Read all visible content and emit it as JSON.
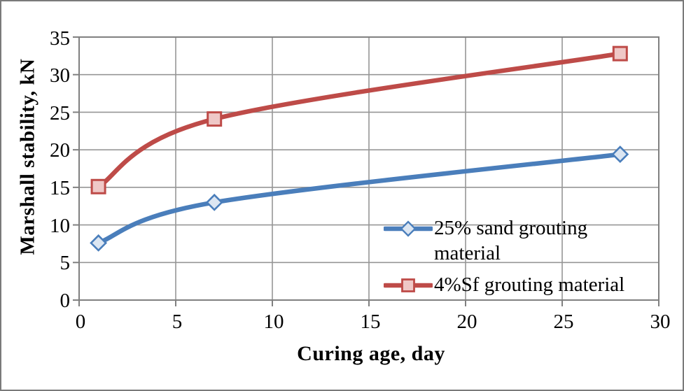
{
  "chart_data": {
    "type": "line",
    "title": "",
    "xlabel": "Curing age, day",
    "ylabel": "Marshall stability, kN",
    "xlim": [
      0,
      30
    ],
    "ylim": [
      0,
      35
    ],
    "xticks": [
      0,
      5,
      10,
      15,
      20,
      25,
      30
    ],
    "yticks": [
      0,
      5,
      10,
      15,
      20,
      25,
      30,
      35
    ],
    "grid": true,
    "line_style": "smooth",
    "legend_position": "inside bottom-right",
    "series": [
      {
        "name": "25% sand grouting material",
        "marker": "diamond",
        "color": "#4A7EBB",
        "marker_fill": "#DCE6F2",
        "x": [
          1,
          7,
          28
        ],
        "y": [
          7.6,
          13.0,
          19.4
        ]
      },
      {
        "name": "4%Sf grouting material",
        "marker": "square",
        "color": "#BE4B48",
        "marker_fill": "#EFC8C7",
        "x": [
          1,
          7,
          28
        ],
        "y": [
          15.1,
          24.1,
          32.8
        ]
      }
    ]
  },
  "colors": {
    "gridline": "#969696",
    "frame": "#808080",
    "border": "#7A7A7A",
    "text": "#000000",
    "background": "#FFFFFF"
  }
}
